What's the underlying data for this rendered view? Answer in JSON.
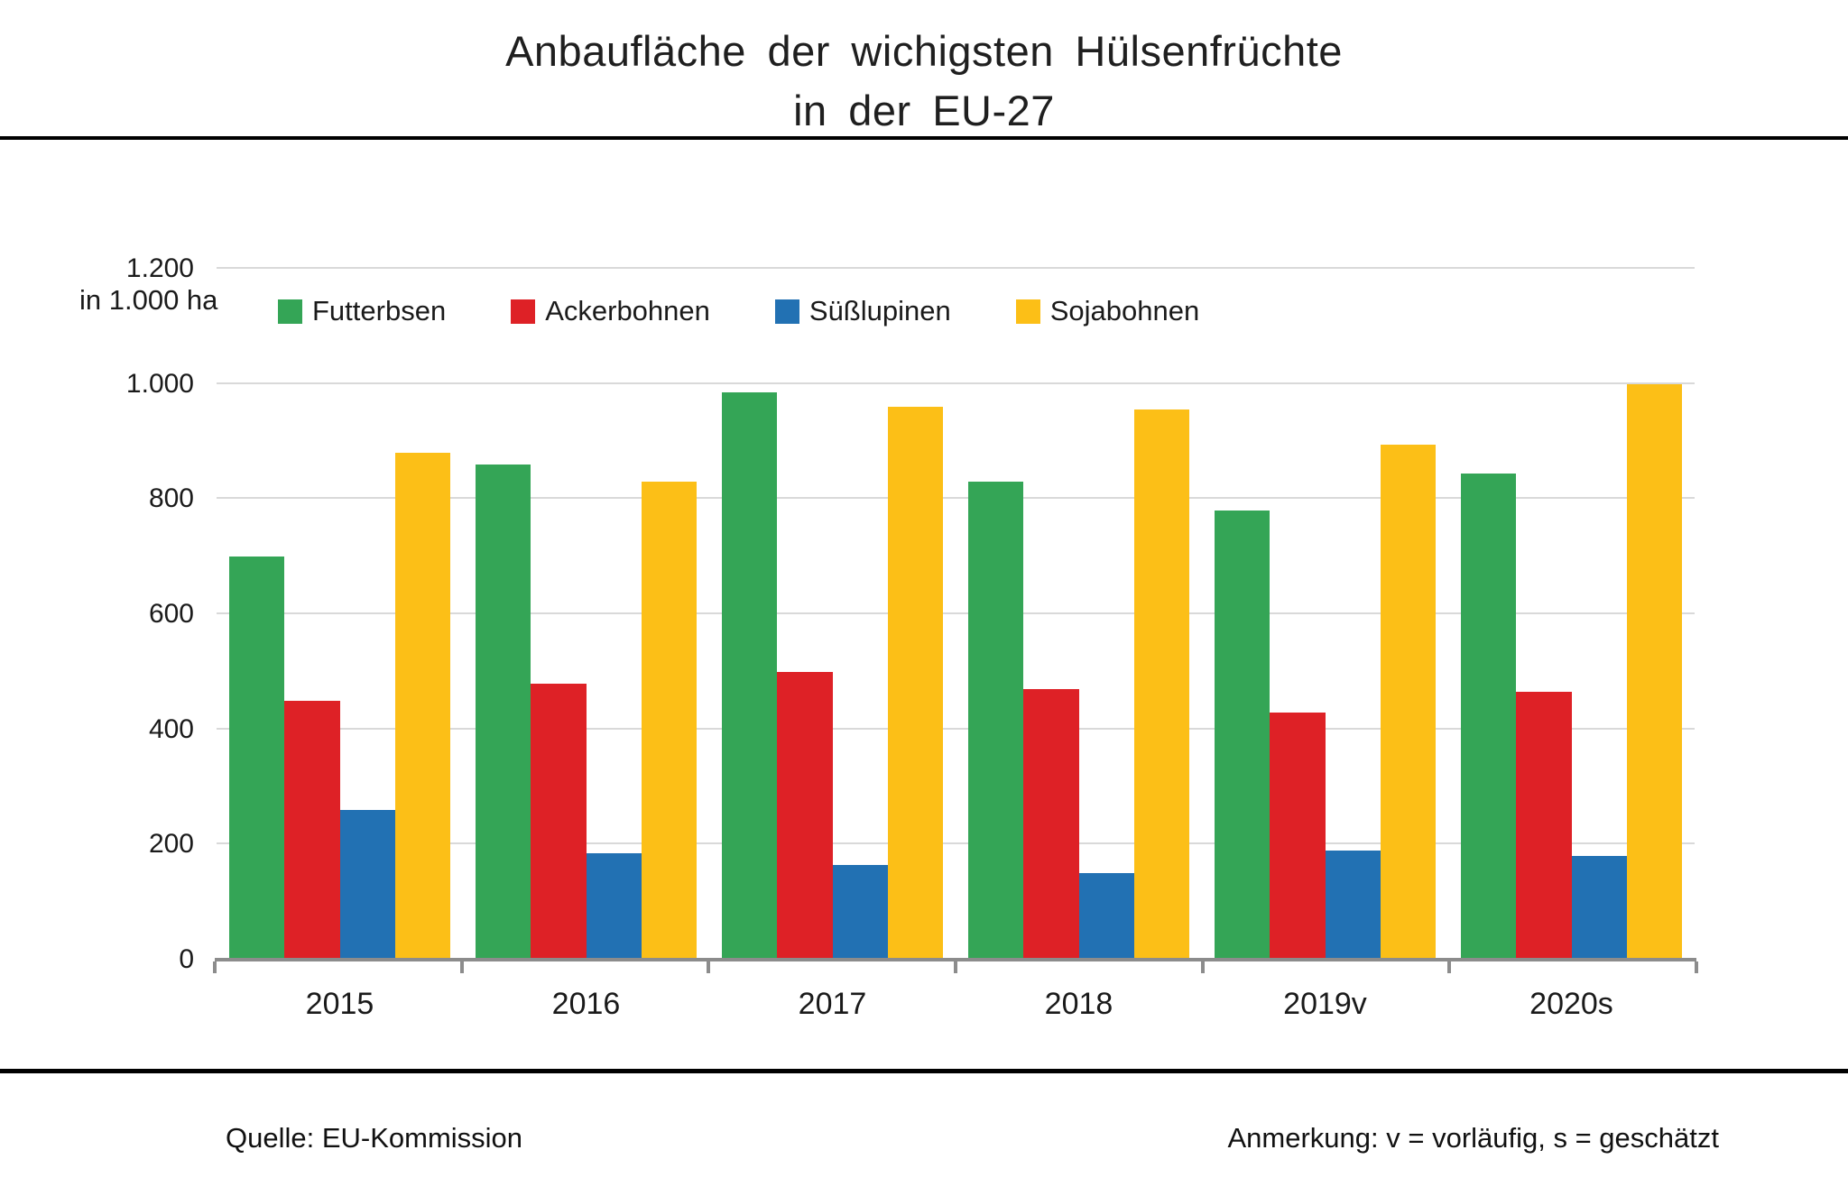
{
  "title": {
    "line1": "Anbaufläche der wichigsten Hülsenfrüchte",
    "line2": "in der EU-27"
  },
  "axis_unit": "in 1.000  ha",
  "footer": {
    "source": "Quelle: EU-Kommission",
    "note": "Anmerkung: v = vorläufig, s = geschätzt"
  },
  "colors": {
    "green": "#34a556",
    "red": "#de2126",
    "blue": "#2271b3",
    "yellow": "#fcbf17",
    "gridline": "#d9d9d9",
    "axis": "#8c8c8c"
  },
  "chart_data": {
    "type": "bar",
    "title": "Anbaufläche der wichigsten Hülsenfrüchte in der EU-27",
    "ylabel": "in 1.000 ha",
    "ylim": [
      0,
      1200
    ],
    "yticks": [
      0,
      200,
      400,
      600,
      800,
      1000,
      1200
    ],
    "ytick_labels": [
      "0",
      "200",
      "400",
      "600",
      "800",
      "1.000",
      "1.200"
    ],
    "grid": true,
    "legend_position": "top-left-inside",
    "categories": [
      "2015",
      "2016",
      "2017",
      "2018",
      "2019v",
      "2020s"
    ],
    "series": [
      {
        "name": "Futterbsen",
        "color": "#34a556",
        "values": [
          700,
          860,
          985,
          830,
          780,
          845
        ]
      },
      {
        "name": "Ackerbohnen",
        "color": "#de2126",
        "values": [
          450,
          480,
          500,
          470,
          430,
          465
        ]
      },
      {
        "name": "Süßlupinen",
        "color": "#2271b3",
        "values": [
          260,
          185,
          165,
          150,
          190,
          180
        ]
      },
      {
        "name": "Sojabohnen",
        "color": "#fcbf17",
        "values": [
          880,
          830,
          960,
          955,
          895,
          1000
        ]
      }
    ]
  }
}
